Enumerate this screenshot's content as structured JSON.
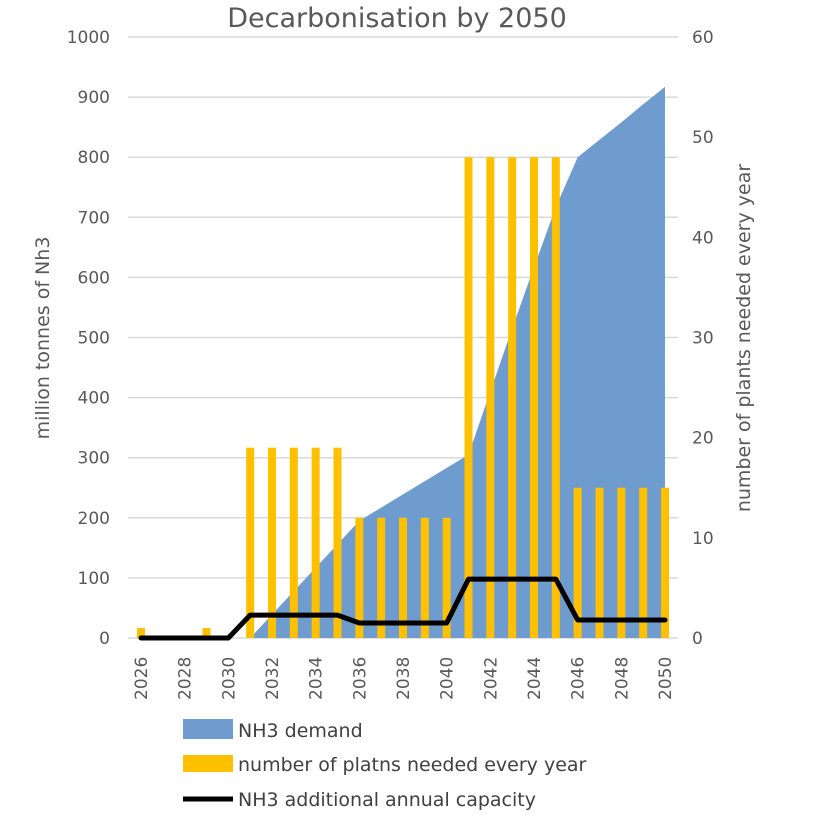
{
  "chart_data": {
    "type": "combo",
    "title": "Decarbonisation by 2050",
    "ylabel_left": "million tonnes of Nh3",
    "ylabel_right": "number of plants needed every year",
    "ylim_left": [
      0,
      1000
    ],
    "ylim_right": [
      0,
      60
    ],
    "yticks_left": [
      0,
      100,
      200,
      300,
      400,
      500,
      600,
      700,
      800,
      900,
      1000
    ],
    "yticks_right": [
      0,
      10,
      20,
      30,
      40,
      50,
      60
    ],
    "x": [
      2026,
      2027,
      2028,
      2029,
      2030,
      2031,
      2032,
      2033,
      2034,
      2035,
      2036,
      2037,
      2038,
      2039,
      2040,
      2041,
      2042,
      2043,
      2044,
      2045,
      2046,
      2047,
      2048,
      2049,
      2050
    ],
    "xticks": [
      2026,
      2028,
      2030,
      2032,
      2034,
      2036,
      2038,
      2040,
      2042,
      2044,
      2046,
      2048,
      2050
    ],
    "grid": true,
    "legend_position": "bottom",
    "series": [
      {
        "name": "NH3 demand",
        "type": "area",
        "axis": "left",
        "color": "#6f9ccf",
        "values": [
          0,
          0,
          0,
          0,
          0,
          0,
          39,
          78,
          117,
          156,
          195,
          217,
          239,
          261,
          283,
          305,
          410,
          515,
          617,
          717,
          800,
          829,
          858,
          888,
          917
        ]
      },
      {
        "name": "number of platns needed every year",
        "type": "bar",
        "axis": "right",
        "color": "#ffc000",
        "values": [
          1,
          0,
          0,
          1,
          0,
          19,
          19,
          19,
          19,
          19,
          12,
          12,
          12,
          12,
          12,
          48,
          48,
          48,
          48,
          48,
          15,
          15,
          15,
          15,
          15
        ]
      },
      {
        "name": "NH3 additional annual capacity",
        "type": "line",
        "axis": "left",
        "color": "#000000",
        "values": [
          0,
          0,
          0,
          0,
          0,
          38,
          38,
          38,
          38,
          38,
          25,
          25,
          25,
          25,
          25,
          98,
          98,
          98,
          98,
          98,
          30,
          30,
          30,
          30,
          30
        ]
      }
    ]
  }
}
